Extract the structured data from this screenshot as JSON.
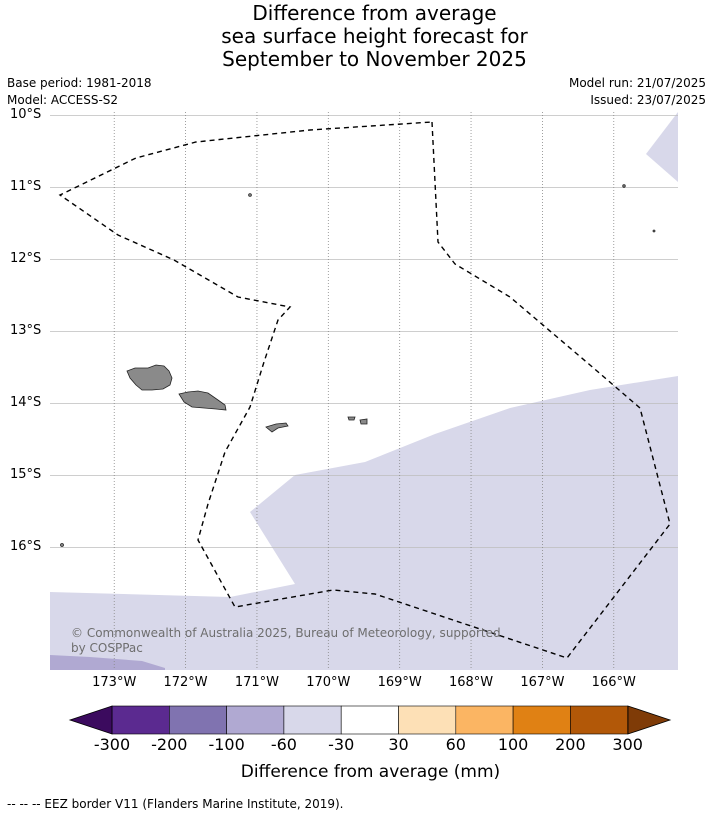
{
  "title": {
    "line1": "Difference from average",
    "line2": "sea surface height forecast for",
    "line3": "September to November 2025"
  },
  "meta": {
    "base_period": "Base period: 1981-2018",
    "model": "Model: ACCESS-S2",
    "model_run": "Model run: 21/07/2025",
    "issued": "Issued: 23/07/2025"
  },
  "map": {
    "lon_range": [
      -173.9,
      -165.1
    ],
    "lat_range": [
      -17.7,
      -9.95
    ],
    "latitude_labels": [
      "10°S",
      "11°S",
      "12°S",
      "13°S",
      "14°S",
      "15°S",
      "16°S"
    ],
    "latitude_values": [
      -10,
      -11,
      -12,
      -13,
      -14,
      -15,
      -16
    ],
    "longitude_labels": [
      "173°W",
      "172°W",
      "171°W",
      "170°W",
      "169°W",
      "168°W",
      "167°W",
      "166°W"
    ],
    "longitude_values": [
      -173,
      -172,
      -171,
      -170,
      -169,
      -168,
      -167,
      -166
    ],
    "colors": {
      "anomaly_-60_-30": "#d8d8ea",
      "anomaly_-100_-60": "#b0a9d2",
      "land": "#8a8a8a",
      "gridline": "#bdbdbd"
    },
    "copyright": "© Commonwealth of Australia 2025, Bureau of Meteorology, supported by COSPPac"
  },
  "colorbar": {
    "title": "Difference from average (mm)",
    "ticks": [
      "-300",
      "-200",
      "-100",
      "-60",
      "-30",
      "30",
      "60",
      "100",
      "200",
      "300"
    ],
    "bins": [
      {
        "color": "#5b2a90"
      },
      {
        "color": "#8073b0"
      },
      {
        "color": "#b0a9d2"
      },
      {
        "color": "#d8d8ea"
      },
      {
        "color": "#ffffff"
      },
      {
        "color": "#fde0b6"
      },
      {
        "color": "#fbb563"
      },
      {
        "color": "#e08114"
      },
      {
        "color": "#b25808"
      }
    ],
    "under_color": "#3b0a5e",
    "over_color": "#7f3b07"
  },
  "footnote": "--  --  -- EEZ border V11 (Flanders Marine Institute, 2019)."
}
